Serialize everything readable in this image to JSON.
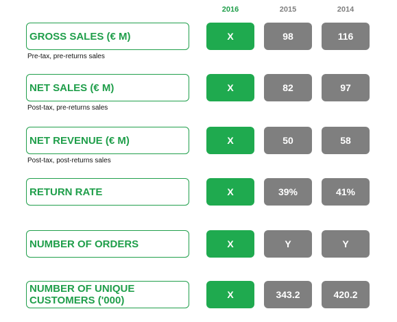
{
  "years": [
    "2016",
    "2015",
    "2014"
  ],
  "metrics": [
    {
      "label": "GROSS SALES (€ M)",
      "sub": "Pre-tax, pre-returns sales",
      "values": [
        "X",
        "98",
        "116"
      ]
    },
    {
      "label": "NET SALES (€ M)",
      "sub": "Post-tax, pre-returns sales",
      "values": [
        "X",
        "82",
        "97"
      ]
    },
    {
      "label": "NET REVENUE (€ M)",
      "sub": "Post-tax, post-returns sales",
      "values": [
        "X",
        "50",
        "58"
      ]
    },
    {
      "label": "RETURN RATE",
      "sub": "",
      "values": [
        "X",
        "39%",
        "41%"
      ]
    },
    {
      "label": "NUMBER OF ORDERS",
      "sub": "",
      "values": [
        "X",
        "Y",
        "Y"
      ]
    },
    {
      "label": "NUMBER OF UNIQUE\nCUSTOMERS ('000)",
      "sub": "",
      "values": [
        "X",
        "343.2",
        "420.2"
      ]
    }
  ],
  "colors": {
    "accent": "#1f9e4a",
    "current_fill": "#1faa4f",
    "past_fill": "#7f7f7f"
  }
}
